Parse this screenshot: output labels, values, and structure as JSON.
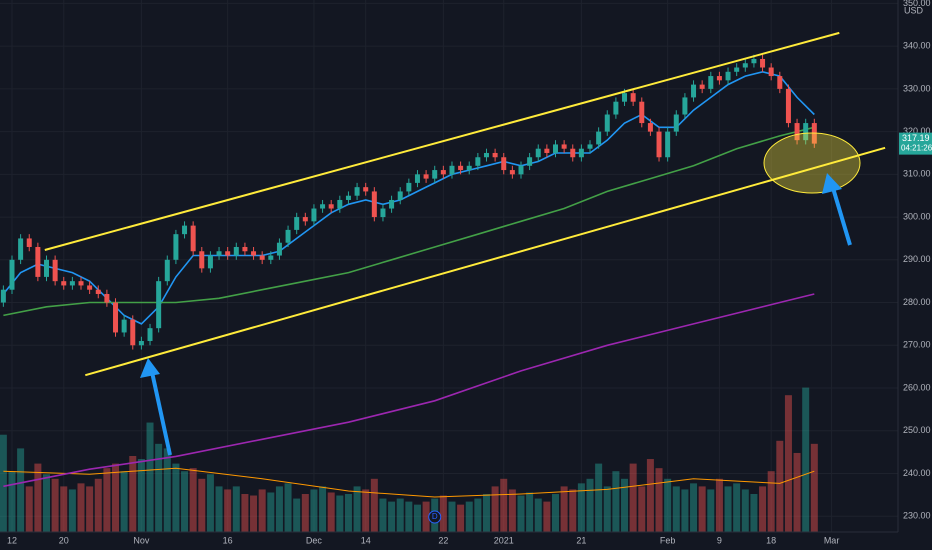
{
  "chart_data": {
    "type": "candlestick",
    "currency": "USD",
    "countdown": "04:21:26",
    "grid": true,
    "up_color": "#26a69a",
    "down_color": "#ef5350",
    "xlim": [
      -0.39,
      103.7
    ],
    "ylim": [
      226.3,
      350.8
    ],
    "vlim": [
      0,
      100
    ],
    "xticks": [
      {
        "value": 1,
        "label": "12"
      },
      {
        "value": 7,
        "label": "20"
      },
      {
        "value": 16,
        "label": "Nov"
      },
      {
        "value": 26,
        "label": "16"
      },
      {
        "value": 36,
        "label": "Dec"
      },
      {
        "value": 42,
        "label": "14"
      },
      {
        "value": 51,
        "label": "22"
      },
      {
        "value": 58,
        "label": "2021"
      },
      {
        "value": 67,
        "label": "21"
      },
      {
        "value": 77,
        "label": "Feb"
      },
      {
        "value": 83,
        "label": "9"
      },
      {
        "value": 89,
        "label": "18"
      },
      {
        "value": 96,
        "label": "Mar"
      }
    ],
    "yticks": [
      {
        "value": 230,
        "label": "230.00"
      },
      {
        "value": 240,
        "label": "240.00"
      },
      {
        "value": 250,
        "label": "250.00"
      },
      {
        "value": 260,
        "label": "260.00"
      },
      {
        "value": 270,
        "label": "270.00"
      },
      {
        "value": 280,
        "label": "280.00"
      },
      {
        "value": 290,
        "label": "290.00"
      },
      {
        "value": 300,
        "label": "300.00"
      },
      {
        "value": 310,
        "label": "310.00"
      },
      {
        "value": 320,
        "label": "320.00"
      },
      {
        "value": 330,
        "label": "330.00"
      },
      {
        "value": 340,
        "label": "340.00"
      },
      {
        "value": 350,
        "label": "350.00"
      }
    ],
    "open": [
      280,
      283,
      290,
      295,
      293,
      286,
      290,
      285,
      284,
      285,
      284,
      283,
      282,
      280,
      273,
      276,
      270,
      271,
      274,
      285,
      290,
      296,
      298,
      292,
      288,
      291,
      292,
      291,
      293,
      292,
      291,
      290,
      291,
      294,
      297,
      300,
      299,
      302,
      303,
      302,
      304,
      305,
      307,
      306,
      300,
      302,
      304,
      306,
      308,
      310,
      309,
      311,
      310,
      312,
      311,
      312,
      314,
      315,
      314,
      311,
      310,
      312,
      314,
      316,
      315,
      317,
      316,
      314,
      316,
      317,
      320,
      324,
      327,
      329,
      327,
      322,
      320,
      314,
      320,
      324,
      328,
      331,
      330,
      333,
      332,
      334,
      335,
      336,
      337,
      335,
      333,
      330,
      322,
      318,
      322
    ],
    "high": [
      284,
      291,
      296,
      296,
      294,
      291,
      291,
      286,
      286,
      286,
      285,
      284,
      283,
      281,
      277,
      277,
      272,
      275,
      286,
      291,
      297,
      299,
      299,
      293,
      292,
      293,
      293,
      294,
      294,
      293,
      292,
      292,
      295,
      298,
      301,
      301,
      303,
      304,
      304,
      305,
      306,
      308,
      308,
      307,
      303,
      305,
      307,
      309,
      311,
      311,
      312,
      312,
      313,
      313,
      313,
      315,
      316,
      316,
      315,
      312,
      313,
      315,
      317,
      317,
      318,
      318,
      317,
      317,
      318,
      321,
      325,
      328,
      330,
      330,
      328,
      323,
      321,
      321,
      325,
      329,
      332,
      332,
      334,
      334,
      335,
      336,
      337,
      338,
      338,
      336,
      334,
      331,
      323,
      323,
      323
    ],
    "low": [
      279,
      282,
      289,
      292,
      285,
      285,
      284,
      283,
      283,
      283,
      282,
      281,
      279,
      272,
      272,
      269,
      269,
      270,
      273,
      284,
      289,
      295,
      291,
      287,
      287,
      290,
      290,
      290,
      291,
      290,
      289,
      289,
      290,
      293,
      296,
      298,
      298,
      301,
      301,
      301,
      303,
      304,
      305,
      299,
      299,
      301,
      303,
      305,
      307,
      308,
      308,
      309,
      309,
      310,
      310,
      311,
      313,
      313,
      310,
      309,
      309,
      311,
      313,
      314,
      314,
      315,
      313,
      313,
      315,
      316,
      319,
      323,
      326,
      326,
      321,
      319,
      313,
      313,
      319,
      323,
      327,
      329,
      329,
      331,
      331,
      333,
      334,
      335,
      334,
      332,
      329,
      321,
      317,
      317,
      316.19
    ],
    "close": [
      283,
      290,
      295,
      293,
      286,
      290,
      285,
      284,
      285,
      284,
      283,
      282,
      280,
      273,
      276,
      270,
      271,
      274,
      285,
      290,
      296,
      298,
      292,
      288,
      291,
      292,
      291,
      293,
      292,
      291,
      290,
      291,
      294,
      297,
      300,
      299,
      302,
      303,
      302,
      304,
      305,
      307,
      306,
      300,
      302,
      304,
      306,
      308,
      310,
      309,
      311,
      310,
      312,
      311,
      312,
      314,
      315,
      314,
      311,
      310,
      312,
      314,
      316,
      315,
      317,
      316,
      314,
      316,
      317,
      320,
      324,
      327,
      329,
      327,
      322,
      320,
      314,
      320,
      324,
      328,
      331,
      330,
      333,
      332,
      334,
      335,
      336,
      337,
      335,
      333,
      330,
      322,
      318,
      322,
      317.19
    ],
    "volume": [
      64,
      40,
      55,
      30,
      45,
      38,
      35,
      30,
      28,
      32,
      30,
      35,
      42,
      45,
      40,
      50,
      48,
      72,
      58,
      55,
      45,
      40,
      42,
      35,
      38,
      30,
      28,
      30,
      25,
      24,
      28,
      26,
      30,
      32,
      22,
      25,
      28,
      30,
      26,
      24,
      25,
      30,
      28,
      35,
      22,
      20,
      22,
      20,
      18,
      20,
      22,
      24,
      20,
      18,
      20,
      22,
      25,
      30,
      35,
      28,
      24,
      26,
      22,
      20,
      25,
      30,
      28,
      32,
      35,
      45,
      30,
      40,
      35,
      45,
      30,
      48,
      42,
      35,
      30,
      28,
      32,
      30,
      28,
      35,
      30,
      32,
      28,
      25,
      30,
      40,
      60,
      90,
      52,
      95,
      58
    ],
    "series": [
      {
        "color": "#2196f3",
        "x": [
          0,
          2,
          4,
          6,
          8,
          10,
          12,
          14,
          16,
          18,
          20,
          22,
          24,
          26,
          28,
          30,
          32,
          34,
          36,
          38,
          40,
          42,
          44,
          46,
          48,
          50,
          52,
          54,
          56,
          58,
          60,
          62,
          64,
          66,
          68,
          70,
          72,
          74,
          76,
          78,
          80,
          82,
          84,
          86,
          88,
          90,
          92,
          94
        ],
        "values": [
          282,
          287,
          289,
          288,
          287,
          285,
          281,
          277,
          275,
          279,
          286,
          291,
          291,
          291,
          291,
          291,
          292,
          295,
          298,
          301,
          303,
          304,
          303,
          304,
          306,
          308,
          310,
          311,
          312,
          313,
          312,
          313,
          315,
          315,
          315,
          318,
          322,
          324,
          321,
          321,
          325,
          328,
          331,
          333,
          334,
          333,
          328,
          324
        ]
      },
      {
        "color": "#43a047",
        "x": [
          0,
          5,
          10,
          15,
          20,
          25,
          30,
          35,
          40,
          45,
          50,
          55,
          60,
          65,
          70,
          75,
          80,
          85,
          90,
          94
        ],
        "values": [
          277,
          279,
          280,
          280,
          280,
          281,
          283,
          285,
          287,
          290,
          293,
          296,
          299,
          302,
          306,
          309,
          312,
          316,
          319,
          321
        ]
      },
      {
        "color": "#9c27b0",
        "x": [
          0,
          10,
          20,
          30,
          40,
          50,
          60,
          70,
          80,
          90,
          94
        ],
        "values": [
          237,
          241,
          244,
          248,
          252,
          257,
          264,
          270,
          275,
          280,
          282
        ]
      }
    ],
    "volume_ma": {
      "color": "#ff9800",
      "x": [
        0,
        10,
        20,
        30,
        40,
        50,
        60,
        70,
        80,
        90,
        94
      ],
      "values": [
        40,
        38,
        42,
        35,
        27,
        23,
        25,
        28,
        35,
        32,
        40
      ]
    },
    "channel": [
      {
        "color": "#ffeb3b",
        "x": [
          4.8,
          96.9
        ],
        "values": [
          292.3,
          343.1
        ]
      },
      {
        "color": "#ffeb3b",
        "x": [
          9.5,
          102.2
        ],
        "values": [
          263,
          316.2
        ]
      }
    ],
    "dividend_marker": {
      "x": 50,
      "label": "D"
    }
  }
}
